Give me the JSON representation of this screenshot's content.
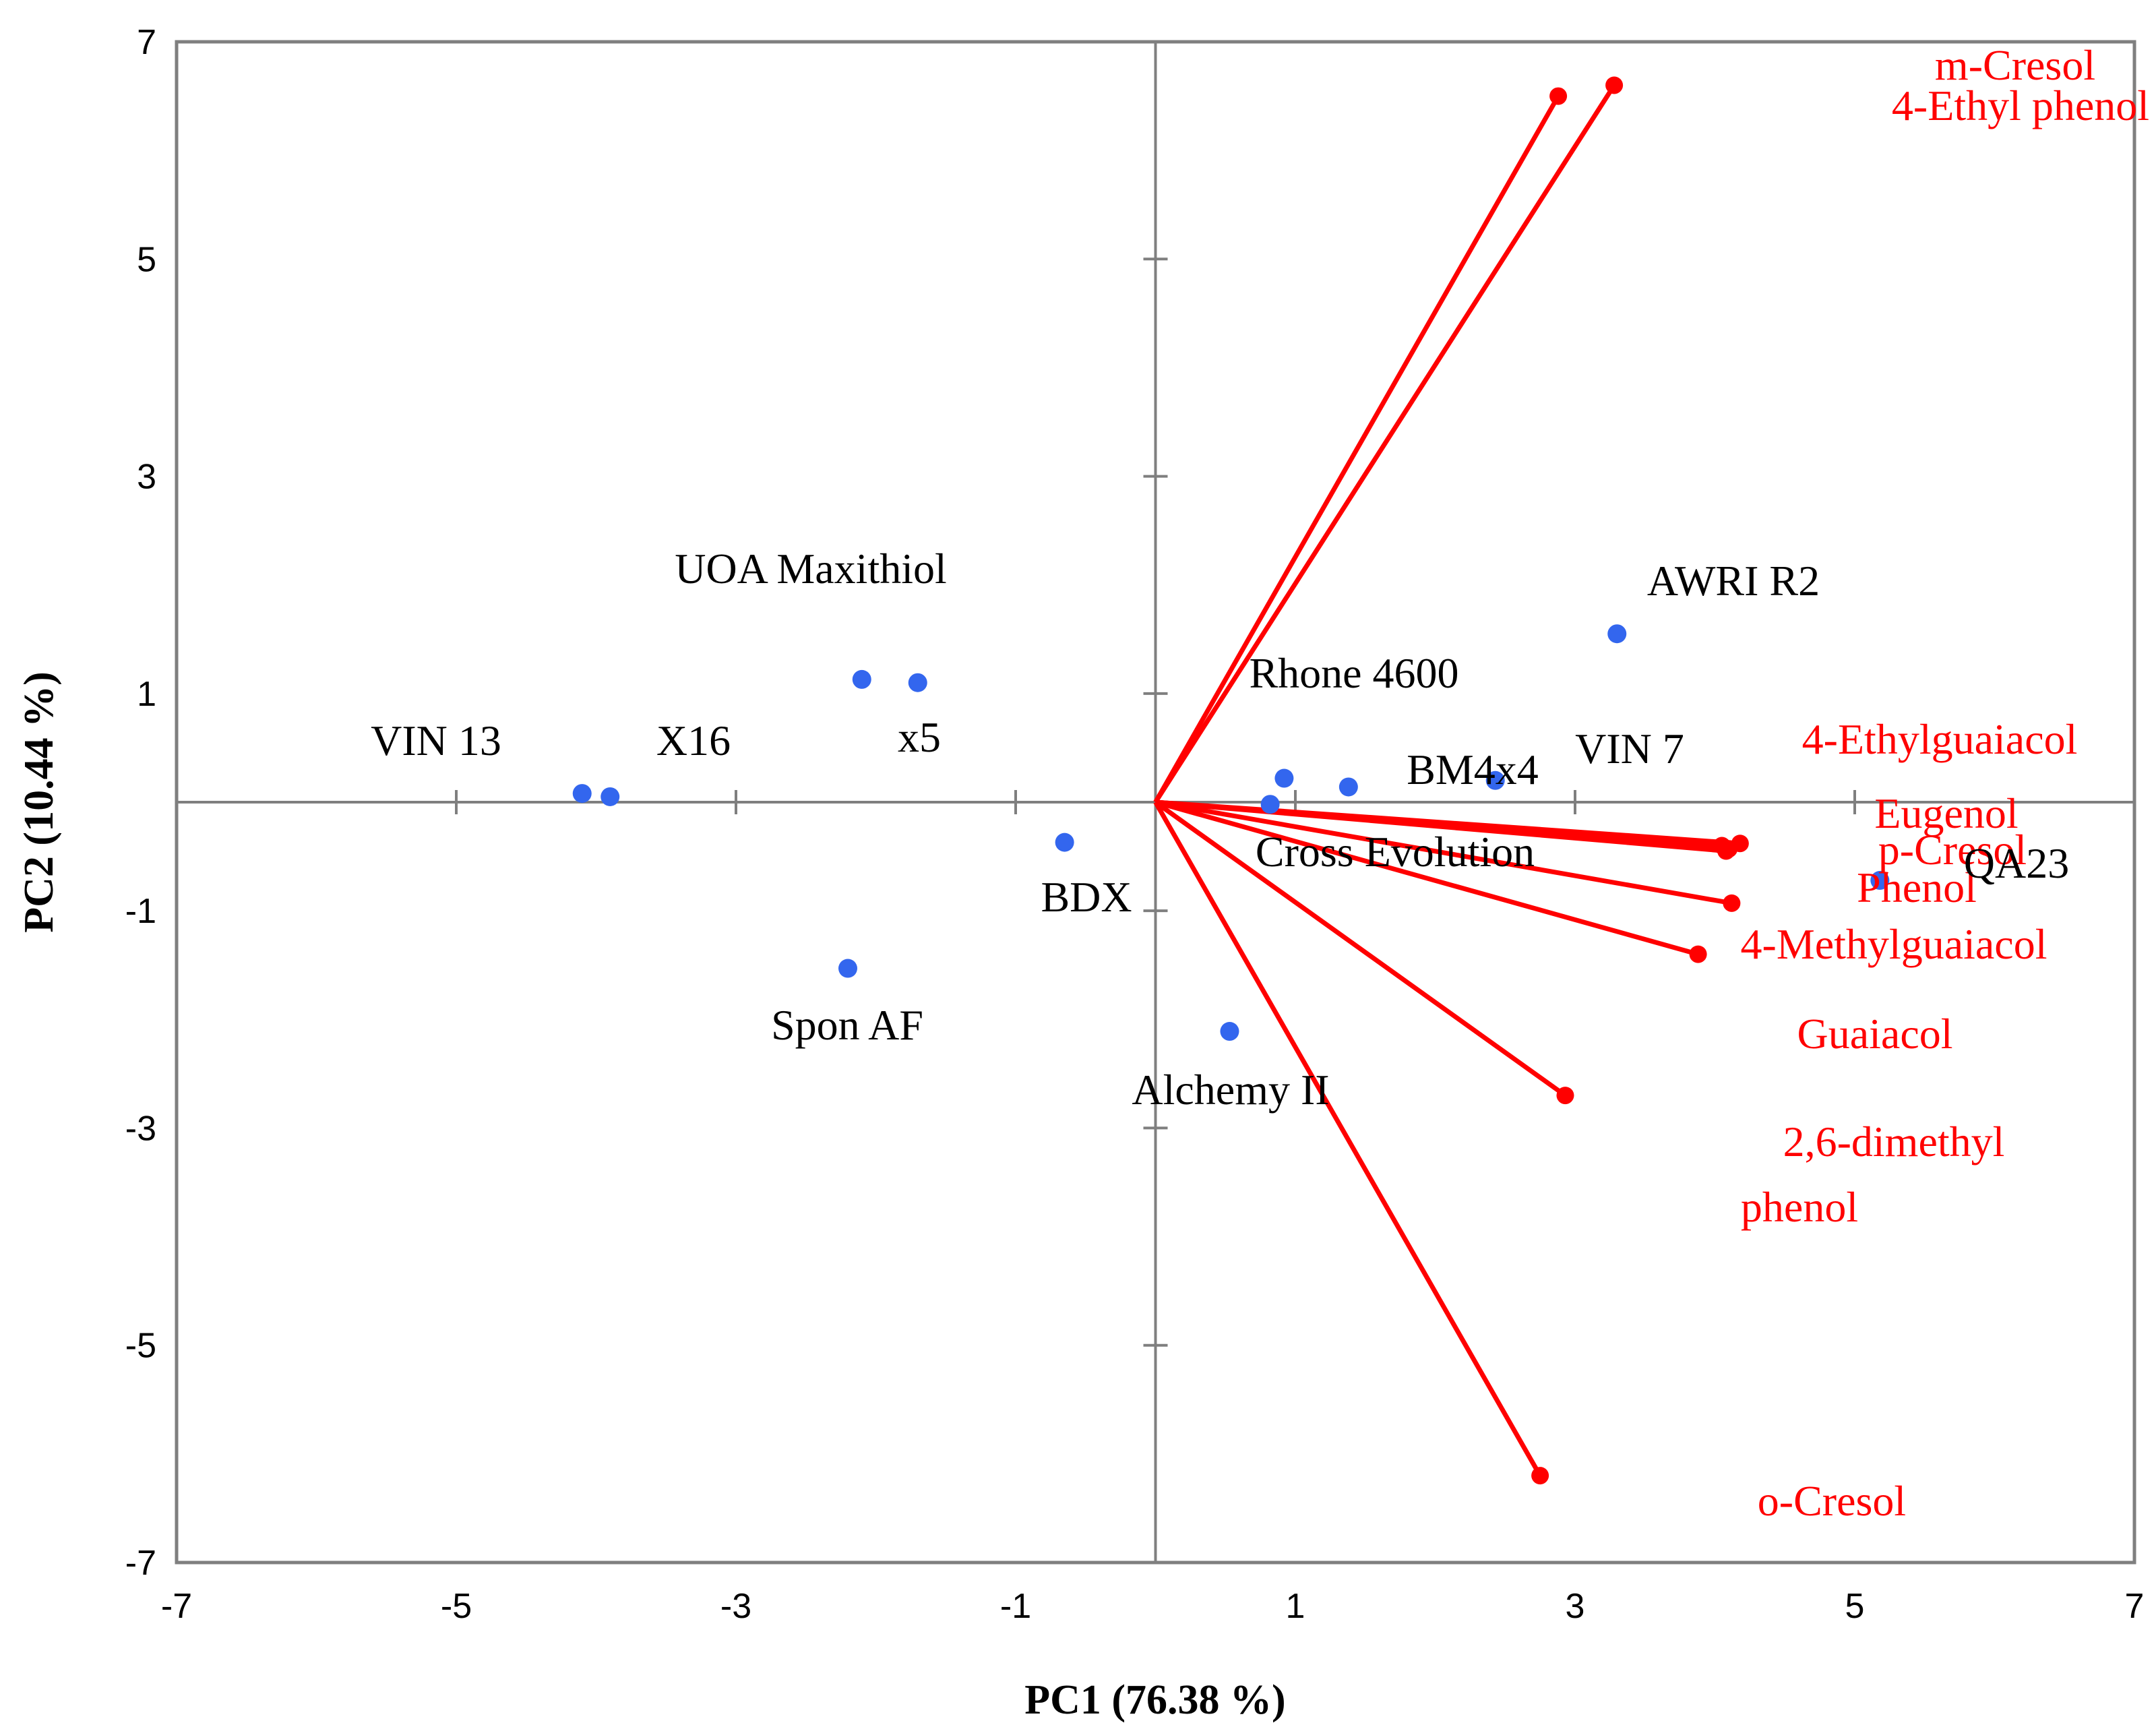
{
  "chart_data": {
    "type": "scatter",
    "title": "",
    "xlabel": "PC1 (76.38 %)",
    "ylabel": "PC2 (10.44 %)",
    "xlim": [
      -7,
      7
    ],
    "ylim": [
      -7,
      7
    ],
    "x_ticks": [
      -7,
      -5,
      -3,
      -1,
      1,
      3,
      5,
      7
    ],
    "y_ticks": [
      -7,
      -5,
      -3,
      -1,
      1,
      3,
      5,
      7
    ],
    "grid": false,
    "colors": {
      "samples": "#3366ee",
      "loadings": "#ff0000",
      "axes": "#7f7f7f"
    },
    "samples": [
      {
        "name": "VIN 13",
        "x": -4.1,
        "y": 0.08
      },
      {
        "name": "X16",
        "x": -3.9,
        "y": 0.05
      },
      {
        "name": "x5",
        "x": -1.7,
        "y": 1.1
      },
      {
        "name": "UOA Maxithiol",
        "x": -2.1,
        "y": 1.13
      },
      {
        "name": "BDX",
        "x": -0.65,
        "y": -0.37
      },
      {
        "name": "Spon AF",
        "x": -2.2,
        "y": -1.53
      },
      {
        "name": "Rhone 4600",
        "x": 0.92,
        "y": 0.22
      },
      {
        "name": "Cross Evolution",
        "x": 0.82,
        "y": -0.02
      },
      {
        "name": "BM4x4",
        "x": 1.38,
        "y": 0.14
      },
      {
        "name": "VIN 7",
        "x": 2.43,
        "y": 0.2
      },
      {
        "name": "AWRI R2",
        "x": 3.3,
        "y": 1.55
      },
      {
        "name": "QA23",
        "x": 5.18,
        "y": -0.72
      },
      {
        "name": "Alchemy II",
        "x": 0.53,
        "y": -2.11
      }
    ],
    "loadings": [
      {
        "name": "m-Cresol",
        "x": 2.88,
        "y": 6.5
      },
      {
        "name": "4-Ethyl phenol",
        "x": 3.28,
        "y": 6.6
      },
      {
        "name": "4-Ethylguaiacol",
        "x": 4.18,
        "y": -0.38
      },
      {
        "name": "Eugenol",
        "x": 4.05,
        "y": -0.4
      },
      {
        "name": "p-Cresol",
        "x": 4.1,
        "y": -0.43
      },
      {
        "name": "Phenol",
        "x": 4.12,
        "y": -0.93
      },
      {
        "name": "4-Methylguaiacol",
        "x": 3.88,
        "y": -1.4
      },
      {
        "name": "Guaiacol",
        "x": 4.08,
        "y": -0.45
      },
      {
        "name": "2,6-dimethyl phenol",
        "x": 2.93,
        "y": -2.7
      },
      {
        "name": "o-Cresol",
        "x": 2.75,
        "y": -6.2
      }
    ]
  }
}
